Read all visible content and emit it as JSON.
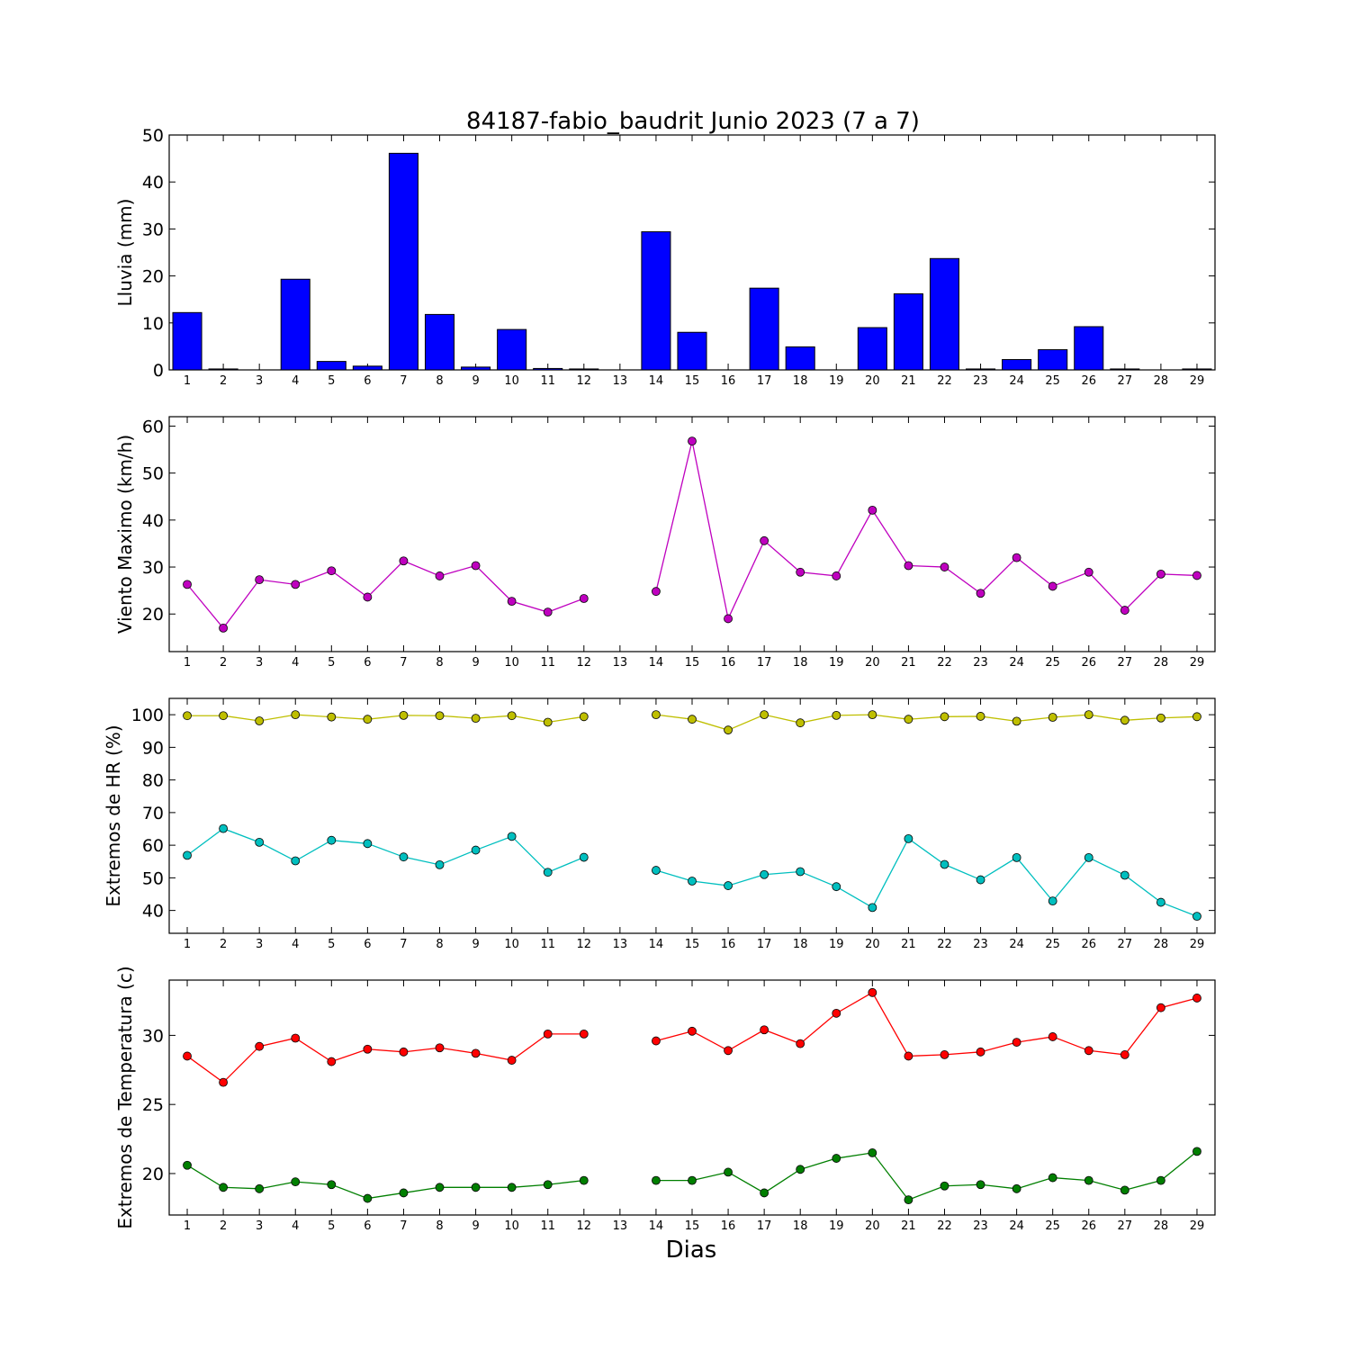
{
  "title": "84187-fabio_baudrit Junio 2023  (7 a 7)",
  "xlabel": "Dias",
  "chart_data": [
    {
      "type": "bar",
      "ylabel": "Lluvia (mm)",
      "categories": [
        "1",
        "2",
        "3",
        "4",
        "5",
        "6",
        "7",
        "8",
        "9",
        "10",
        "11",
        "12",
        "13",
        "14",
        "15",
        "16",
        "17",
        "18",
        "19",
        "20",
        "21",
        "22",
        "23",
        "24",
        "25",
        "26",
        "27",
        "28",
        "29"
      ],
      "values": [
        12.2,
        0.2,
        0.0,
        19.3,
        1.8,
        0.8,
        46.1,
        11.8,
        0.6,
        8.6,
        0.3,
        0.2,
        null,
        29.4,
        8.0,
        0.0,
        17.4,
        4.9,
        0.0,
        9.0,
        16.2,
        23.7,
        0.2,
        2.2,
        4.3,
        9.2,
        0.2,
        0.0,
        0.2
      ],
      "color": "#0000ff",
      "ylim": [
        0,
        50
      ],
      "yticks": [
        0,
        10,
        20,
        30,
        40,
        50
      ]
    },
    {
      "type": "line",
      "ylabel": "Viento Maximo (km/h)",
      "x": [
        1,
        2,
        3,
        4,
        5,
        6,
        7,
        8,
        9,
        10,
        11,
        12,
        13,
        14,
        15,
        16,
        17,
        18,
        19,
        20,
        21,
        22,
        23,
        24,
        25,
        26,
        27,
        28,
        29
      ],
      "series": [
        {
          "values": [
            26.3,
            17.0,
            27.3,
            26.3,
            29.2,
            23.6,
            31.3,
            28.1,
            30.3,
            22.7,
            20.4,
            23.3,
            null,
            24.8,
            56.8,
            19.0,
            35.6,
            28.9,
            28.1,
            42.1,
            30.3,
            30.0,
            24.4,
            32.0,
            25.9,
            28.9,
            20.8,
            28.5,
            28.2
          ],
          "color": "#bf00bf"
        }
      ],
      "ylim": [
        12,
        62
      ],
      "yticks": [
        20,
        30,
        40,
        50,
        60
      ]
    },
    {
      "type": "line",
      "ylabel": "Extremos de HR (%)",
      "x": [
        1,
        2,
        3,
        4,
        5,
        6,
        7,
        8,
        9,
        10,
        11,
        12,
        13,
        14,
        15,
        16,
        17,
        18,
        19,
        20,
        21,
        22,
        23,
        24,
        25,
        26,
        27,
        28,
        29
      ],
      "series": [
        {
          "values": [
            99.7,
            99.7,
            98.1,
            100.0,
            99.3,
            98.6,
            99.8,
            99.7,
            98.9,
            99.7,
            97.7,
            99.4,
            null,
            100.0,
            98.6,
            95.3,
            100.0,
            97.5,
            99.8,
            100.0,
            98.6,
            99.4,
            99.5,
            98.0,
            99.2,
            100.0,
            98.3,
            99.0,
            99.4
          ],
          "color": "#bfbf00"
        },
        {
          "values": [
            56.9,
            65.1,
            60.9,
            55.2,
            61.5,
            60.5,
            56.4,
            54.0,
            58.5,
            62.7,
            51.7,
            56.3,
            null,
            52.3,
            49.0,
            47.6,
            51.0,
            51.9,
            47.3,
            40.9,
            62.0,
            54.1,
            49.4,
            56.2,
            42.9,
            56.2,
            50.8,
            42.5,
            38.2
          ],
          "color": "#00bfbf"
        }
      ],
      "ylim": [
        33,
        105
      ],
      "yticks": [
        40,
        50,
        60,
        70,
        80,
        90,
        100
      ]
    },
    {
      "type": "line",
      "ylabel": "Extremos de Temperatura (c)",
      "x": [
        1,
        2,
        3,
        4,
        5,
        6,
        7,
        8,
        9,
        10,
        11,
        12,
        13,
        14,
        15,
        16,
        17,
        18,
        19,
        20,
        21,
        22,
        23,
        24,
        25,
        26,
        27,
        28,
        29
      ],
      "series": [
        {
          "values": [
            28.5,
            26.6,
            29.2,
            29.8,
            28.1,
            29.0,
            28.8,
            29.1,
            28.7,
            28.2,
            30.1,
            30.1,
            null,
            29.6,
            30.3,
            28.9,
            30.4,
            29.4,
            31.6,
            33.1,
            28.5,
            28.6,
            28.8,
            29.5,
            29.9,
            28.9,
            28.6,
            32.0,
            32.7
          ],
          "color": "#ff0000"
        },
        {
          "values": [
            20.6,
            19.0,
            18.9,
            19.4,
            19.2,
            18.2,
            18.6,
            19.0,
            19.0,
            19.0,
            19.2,
            19.5,
            null,
            19.5,
            19.5,
            20.1,
            18.6,
            20.3,
            21.1,
            21.5,
            18.1,
            19.1,
            19.2,
            18.9,
            19.7,
            19.5,
            18.8,
            19.5,
            21.6
          ],
          "color": "#007f00"
        }
      ],
      "ylim": [
        17,
        34
      ],
      "yticks": [
        20,
        25,
        30
      ]
    }
  ]
}
